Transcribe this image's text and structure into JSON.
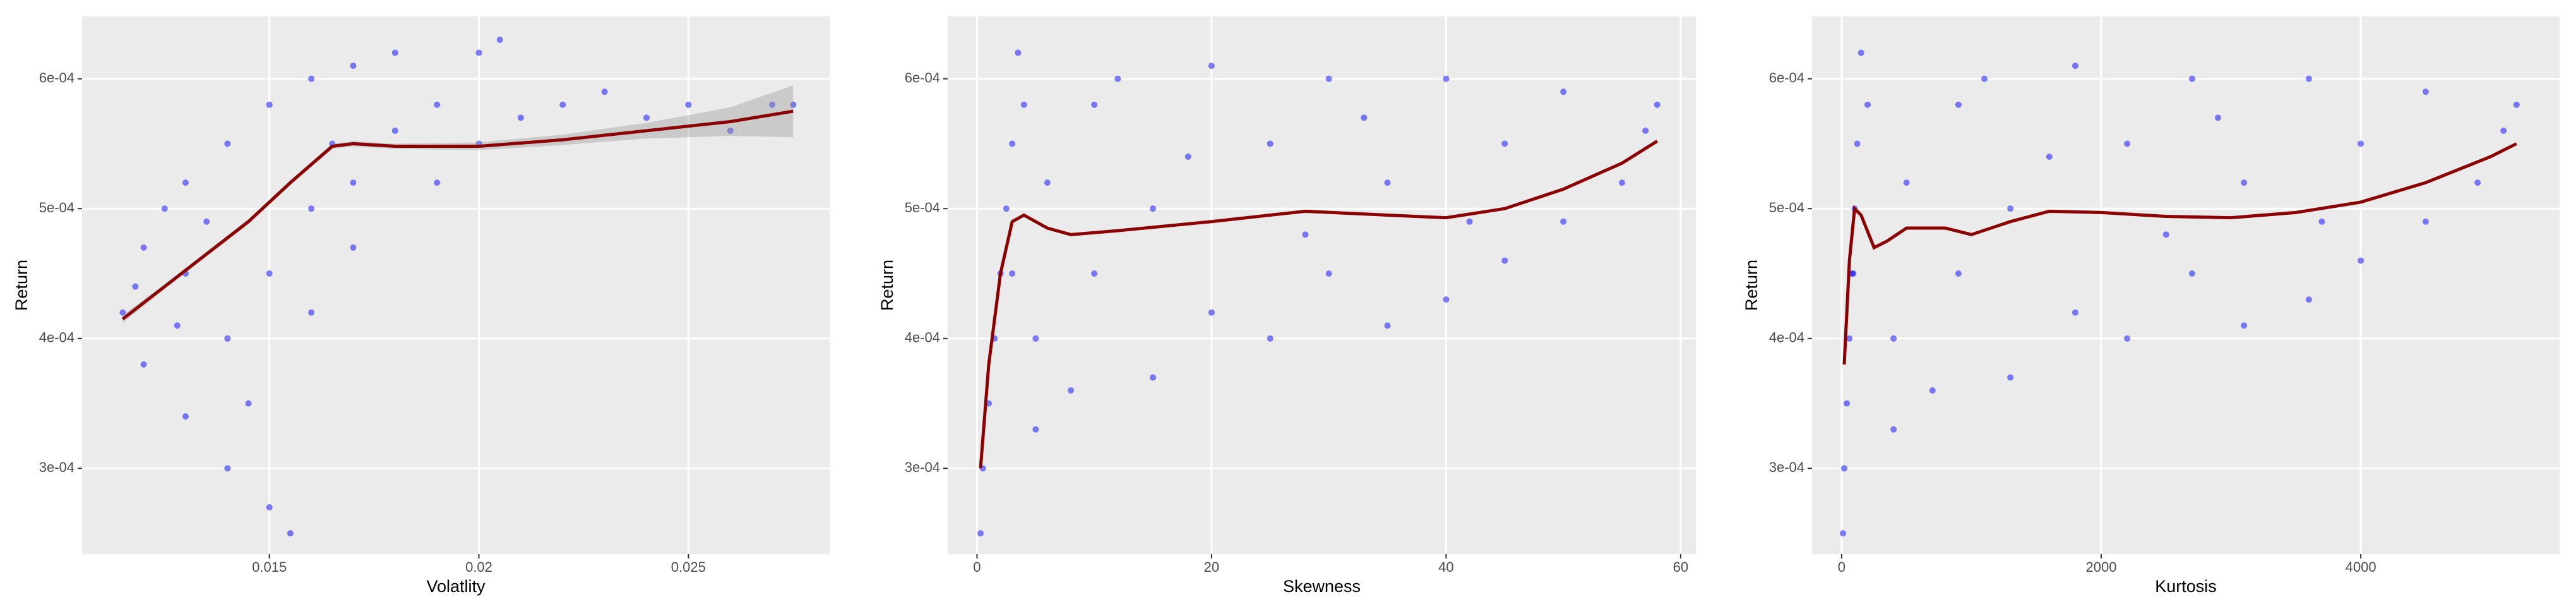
{
  "chart_data": [
    {
      "type": "scatter",
      "x_label": "Volatlity",
      "y_label": "Return",
      "color": "#0000ff",
      "xlim": [
        0.01053,
        0.02837
      ],
      "ylim": [
        0.000234,
        0.000648
      ],
      "xticks": [
        0.015,
        0.02,
        0.025
      ],
      "yticks": [
        {
          "value": 0.0003,
          "label": "3e-04"
        },
        {
          "value": 0.0004,
          "label": "4e-04"
        },
        {
          "value": 0.0005,
          "label": "5e-04"
        },
        {
          "value": 0.0006,
          "label": "6e-04"
        }
      ],
      "x": [
        0.0115,
        0.012,
        0.013,
        0.014,
        0.015,
        0.016,
        0.017,
        0.018,
        0.02,
        0.0205,
        0.012,
        0.013,
        0.014,
        0.015,
        0.0155,
        0.013,
        0.014,
        0.015,
        0.016,
        0.017,
        0.018,
        0.019,
        0.02,
        0.021,
        0.022,
        0.023,
        0.024,
        0.025,
        0.026,
        0.027,
        0.0275,
        0.016,
        0.017,
        0.019,
        0.0145,
        0.0125,
        0.0135,
        0.0118,
        0.0128,
        0.0165
      ],
      "values": [
        0.00042,
        0.00047,
        0.00052,
        0.00055,
        0.00058,
        0.0006,
        0.00061,
        0.00062,
        0.00062,
        0.00063,
        0.00038,
        0.00034,
        0.0003,
        0.00027,
        0.00025,
        0.00045,
        0.0004,
        0.00045,
        0.0005,
        0.00052,
        0.00056,
        0.00058,
        0.00055,
        0.00057,
        0.00058,
        0.00059,
        0.00057,
        0.00058,
        0.00056,
        0.00058,
        0.00058,
        0.00042,
        0.00047,
        0.00052,
        0.00035,
        0.0005,
        0.00049,
        0.00044,
        0.00041,
        0.00055
      ],
      "smooth": {
        "color": "#8b0000",
        "x": [
          0.0115,
          0.0125,
          0.0135,
          0.0145,
          0.0155,
          0.0165,
          0.017,
          0.018,
          0.02,
          0.022,
          0.024,
          0.026,
          0.0275
        ],
        "values": [
          0.000415,
          0.00044,
          0.000465,
          0.00049,
          0.00052,
          0.000548,
          0.00055,
          0.000548,
          0.000548,
          0.000553,
          0.00056,
          0.000567,
          0.000575
        ],
        "upper": [
          0.000418,
          0.000442,
          0.000467,
          0.000492,
          0.000522,
          0.00055,
          0.000552,
          0.00055,
          0.000551,
          0.000557,
          0.000566,
          0.000578,
          0.000595
        ],
        "lower": [
          0.000412,
          0.000438,
          0.000463,
          0.000488,
          0.000518,
          0.000546,
          0.000548,
          0.000546,
          0.000545,
          0.000549,
          0.000554,
          0.000556,
          0.000555
        ]
      }
    },
    {
      "type": "scatter",
      "x_label": "Skewness",
      "y_label": "Return",
      "color": "#0000ff",
      "xlim": [
        -2.5,
        61.3
      ],
      "ylim": [
        0.000234,
        0.000648
      ],
      "xticks": [
        0,
        20,
        40,
        60
      ],
      "yticks": [
        {
          "value": 0.0003,
          "label": "3e-04"
        },
        {
          "value": 0.0004,
          "label": "4e-04"
        },
        {
          "value": 0.0005,
          "label": "5e-04"
        },
        {
          "value": 0.0006,
          "label": "6e-04"
        }
      ],
      "x": [
        0.3,
        0.5,
        1,
        1.5,
        2,
        2.5,
        3,
        3.5,
        4,
        5,
        5,
        8,
        10,
        10,
        15,
        15,
        20,
        20,
        25,
        25,
        30,
        30,
        35,
        35,
        40,
        40,
        45,
        45,
        50,
        50,
        55,
        57,
        58,
        12,
        28,
        42,
        3,
        6,
        18,
        33
      ],
      "values": [
        0.00025,
        0.0003,
        0.00035,
        0.0004,
        0.00045,
        0.0005,
        0.00055,
        0.00062,
        0.00058,
        0.0004,
        0.00033,
        0.00036,
        0.00045,
        0.00058,
        0.00037,
        0.0005,
        0.00061,
        0.00042,
        0.0004,
        0.00055,
        0.0006,
        0.00045,
        0.00041,
        0.00052,
        0.00043,
        0.0006,
        0.00046,
        0.00055,
        0.00049,
        0.00059,
        0.00052,
        0.00056,
        0.00058,
        0.0006,
        0.00048,
        0.00049,
        0.00045,
        0.00052,
        0.00054,
        0.00057
      ],
      "smooth": {
        "color": "#8b0000",
        "x": [
          0.3,
          1,
          2,
          3,
          4,
          6,
          8,
          12,
          20,
          28,
          35,
          40,
          45,
          50,
          55,
          58
        ],
        "values": [
          0.0003,
          0.00038,
          0.00045,
          0.00049,
          0.000495,
          0.000485,
          0.00048,
          0.000483,
          0.00049,
          0.000498,
          0.000495,
          0.000493,
          0.0005,
          0.000515,
          0.000535,
          0.000552
        ]
      }
    },
    {
      "type": "scatter",
      "x_label": "Kurtosis",
      "y_label": "Return",
      "color": "#0000ff",
      "xlim": [
        -228,
        5532
      ],
      "ylim": [
        0.000234,
        0.000648
      ],
      "xticks": [
        0,
        2000,
        4000
      ],
      "yticks": [
        {
          "value": 0.0003,
          "label": "3e-04"
        },
        {
          "value": 0.0004,
          "label": "4e-04"
        },
        {
          "value": 0.0005,
          "label": "5e-04"
        },
        {
          "value": 0.0006,
          "label": "6e-04"
        }
      ],
      "x": [
        10,
        20,
        40,
        60,
        80,
        100,
        120,
        150,
        200,
        400,
        400,
        700,
        900,
        900,
        1300,
        1300,
        1800,
        1800,
        2200,
        2200,
        2700,
        2700,
        3100,
        3100,
        3600,
        3600,
        4000,
        4000,
        4500,
        4500,
        4900,
        5100,
        5200,
        1100,
        2500,
        3700,
        90,
        500,
        1600,
        2900
      ],
      "values": [
        0.00025,
        0.0003,
        0.00035,
        0.0004,
        0.00045,
        0.0005,
        0.00055,
        0.00062,
        0.00058,
        0.0004,
        0.00033,
        0.00036,
        0.00045,
        0.00058,
        0.00037,
        0.0005,
        0.00061,
        0.00042,
        0.0004,
        0.00055,
        0.0006,
        0.00045,
        0.00041,
        0.00052,
        0.00043,
        0.0006,
        0.00046,
        0.00055,
        0.00049,
        0.00059,
        0.00052,
        0.00056,
        0.00058,
        0.0006,
        0.00048,
        0.00049,
        0.00045,
        0.00052,
        0.00054,
        0.00057
      ],
      "smooth": {
        "color": "#8b0000",
        "x": [
          20,
          60,
          100,
          150,
          250,
          350,
          500,
          800,
          1000,
          1300,
          1600,
          2000,
          2500,
          3000,
          3500,
          4000,
          4500,
          5000,
          5200
        ],
        "values": [
          0.00038,
          0.00046,
          0.0005,
          0.000495,
          0.00047,
          0.000475,
          0.000485,
          0.000485,
          0.00048,
          0.00049,
          0.000498,
          0.000497,
          0.000494,
          0.000493,
          0.000497,
          0.000505,
          0.00052,
          0.00054,
          0.00055
        ]
      }
    }
  ]
}
